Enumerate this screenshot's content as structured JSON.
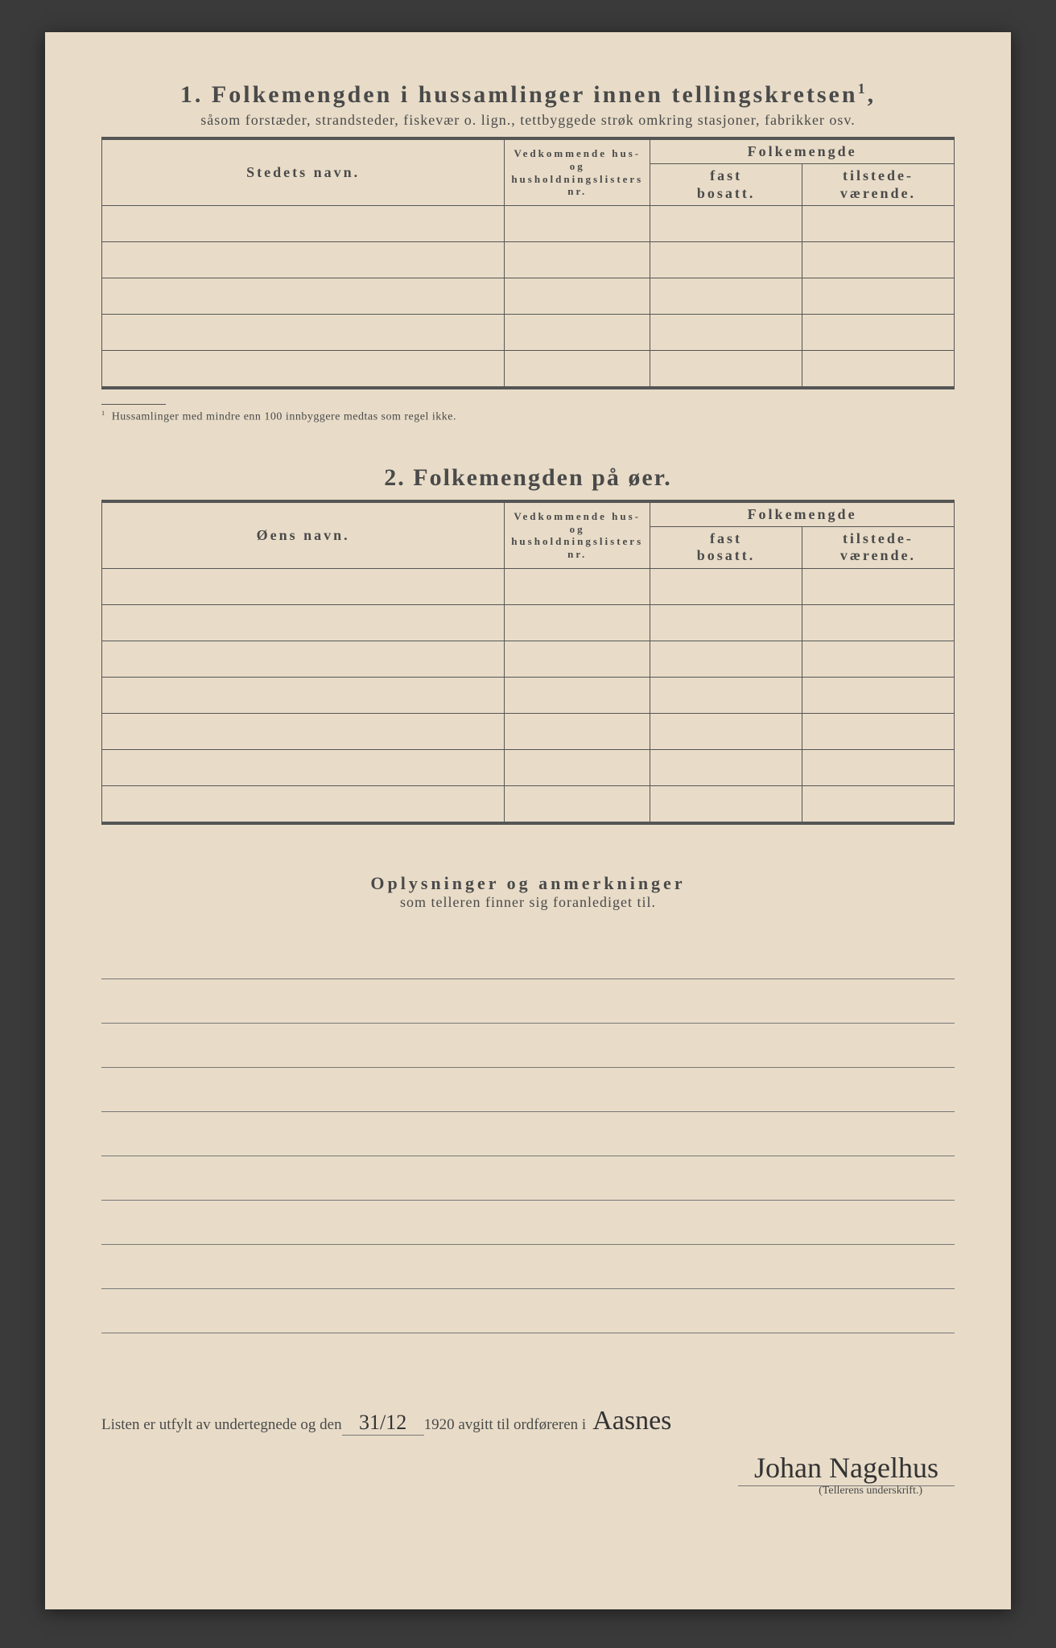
{
  "colors": {
    "paper": "#e8dcc8",
    "ink": "#4a4a4a",
    "line": "#555555",
    "handwriting": "#333333",
    "backdrop": "#3a3a3a"
  },
  "section1": {
    "number": "1.",
    "title": "Folkemengden i hussamlinger innen tellingskretsen",
    "title_sup": "1",
    "title_tail": ",",
    "subtitle": "såsom forstæder, strandsteder, fiskevær o. lign., tettbyggede strøk omkring stasjoner, fabrikker osv.",
    "col_name": "Stedets navn.",
    "col_nr_l1": "Vedkommende hus- og",
    "col_nr_l2": "husholdningslisters",
    "col_nr_l3": "nr.",
    "col_folke": "Folkemengde",
    "col_fast_l1": "fast",
    "col_fast_l2": "bosatt.",
    "col_til_l1": "tilstede-",
    "col_til_l2": "værende.",
    "footnote_marker": "1",
    "footnote": "Hussamlinger med mindre enn 100 innbyggere medtas som regel ikke."
  },
  "section2": {
    "number": "2.",
    "title": "Folkemengden på øer.",
    "col_name": "Øens navn.",
    "col_nr_l1": "Vedkommende hus- og",
    "col_nr_l2": "husholdningslisters",
    "col_nr_l3": "nr.",
    "col_folke": "Folkemengde",
    "col_fast_l1": "fast",
    "col_fast_l2": "bosatt.",
    "col_til_l1": "tilstede-",
    "col_til_l2": "værende."
  },
  "section3": {
    "title": "Oplysninger og anmerkninger",
    "subtitle": "som telleren finner sig foranlediget til."
  },
  "footer": {
    "text1": "Listen er utfylt av undertegnede og den",
    "date_handwritten": "31/12",
    "text2": "1920 avgitt til ordføreren i",
    "place_handwritten": "Aasnes",
    "signature": "Johan Nagelhus",
    "signature_caption": "(Tellerens underskrift.)"
  }
}
